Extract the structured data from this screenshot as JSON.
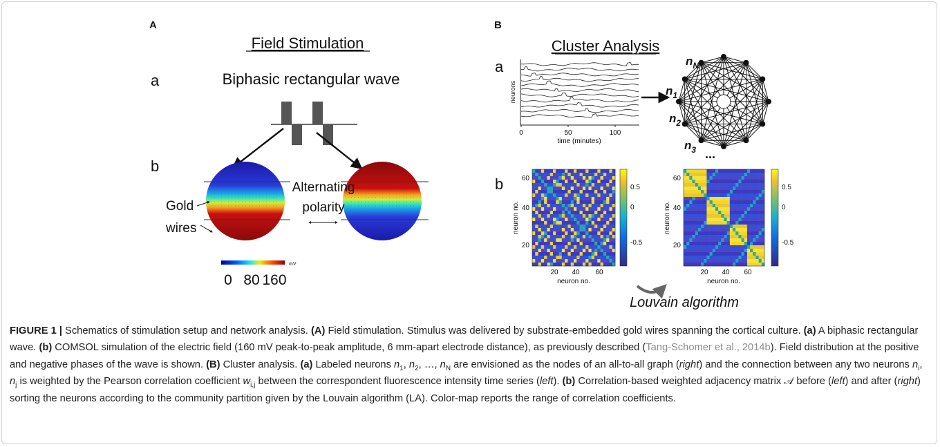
{
  "panel_a": {
    "label": "A",
    "title": "Field Stimulation",
    "a": {
      "label": "a",
      "text": "Biphasic rectangular wave"
    },
    "b": {
      "label": "b",
      "gold_wires": [
        "Gold",
        "wires"
      ],
      "alternating_polarity": [
        "Alternating",
        "polarity"
      ],
      "colorbar_unit": "mV",
      "colorbar_ticks": [
        "0",
        "80",
        "160"
      ]
    }
  },
  "panel_b": {
    "label": "B",
    "title": "Cluster Analysis",
    "a": {
      "label": "a",
      "y_label": "neurons",
      "x_label": "time (minutes)",
      "x_ticks": [
        "0",
        "50",
        "100"
      ],
      "nodes": [
        {
          "n": "n",
          "sub": "N"
        },
        {
          "n": "n",
          "sub": "1"
        },
        {
          "n": "n",
          "sub": "2"
        },
        {
          "n": "n",
          "sub": "3"
        }
      ],
      "ellipsis": "..."
    },
    "b": {
      "label": "b",
      "axis_label": "neuron no.",
      "ticks": [
        "20",
        "40",
        "60"
      ],
      "colorbar_ticks": [
        "0.5",
        "0",
        "-0.5"
      ],
      "algorithm": "Louvain algorithm"
    }
  },
  "caption": [
    "FIGURE 1 |",
    " Schematics of stimulation setup and network analysis. ",
    "(A)",
    " Field stimulation. Stimulus was delivered by substrate-embedded gold wires spanning the cortical culture. ",
    "(a)",
    " A biphasic rectangular wave. ",
    "(b)",
    " COMSOL simulation of the electric field (160 mV peak-to-peak amplitude, 6 mm-apart electrode distance), as previously described (",
    "Tang-Schomer et al., 2014b",
    "). Field distribution at the positive and negative phases of the wave is shown. ",
    "(B)",
    " Cluster analysis. ",
    "(a)",
    " Labeled neurons ",
    "n",
    "1",
    ", ",
    "n",
    "2",
    ", …, ",
    "n",
    "N",
    " are envisioned as the nodes of an all-to-all graph (",
    "right",
    ") and the connection between any two neurons ",
    "n",
    "i",
    ", ",
    "n",
    "j",
    " is weighted by the Pearson correlation coefficient ",
    "w",
    "i,j",
    " between the correspondent fluorescence intensity time series (",
    "left",
    "). ",
    "(b)",
    " Correlation-based weighted adjacency matrix ",
    "𝒜",
    " before (",
    "left",
    ") and after (",
    "right",
    ") sorting the neurons according to the community partition given by the Louvain algorithm (LA). Color-map reports the range of correlation coefficients."
  ]
}
